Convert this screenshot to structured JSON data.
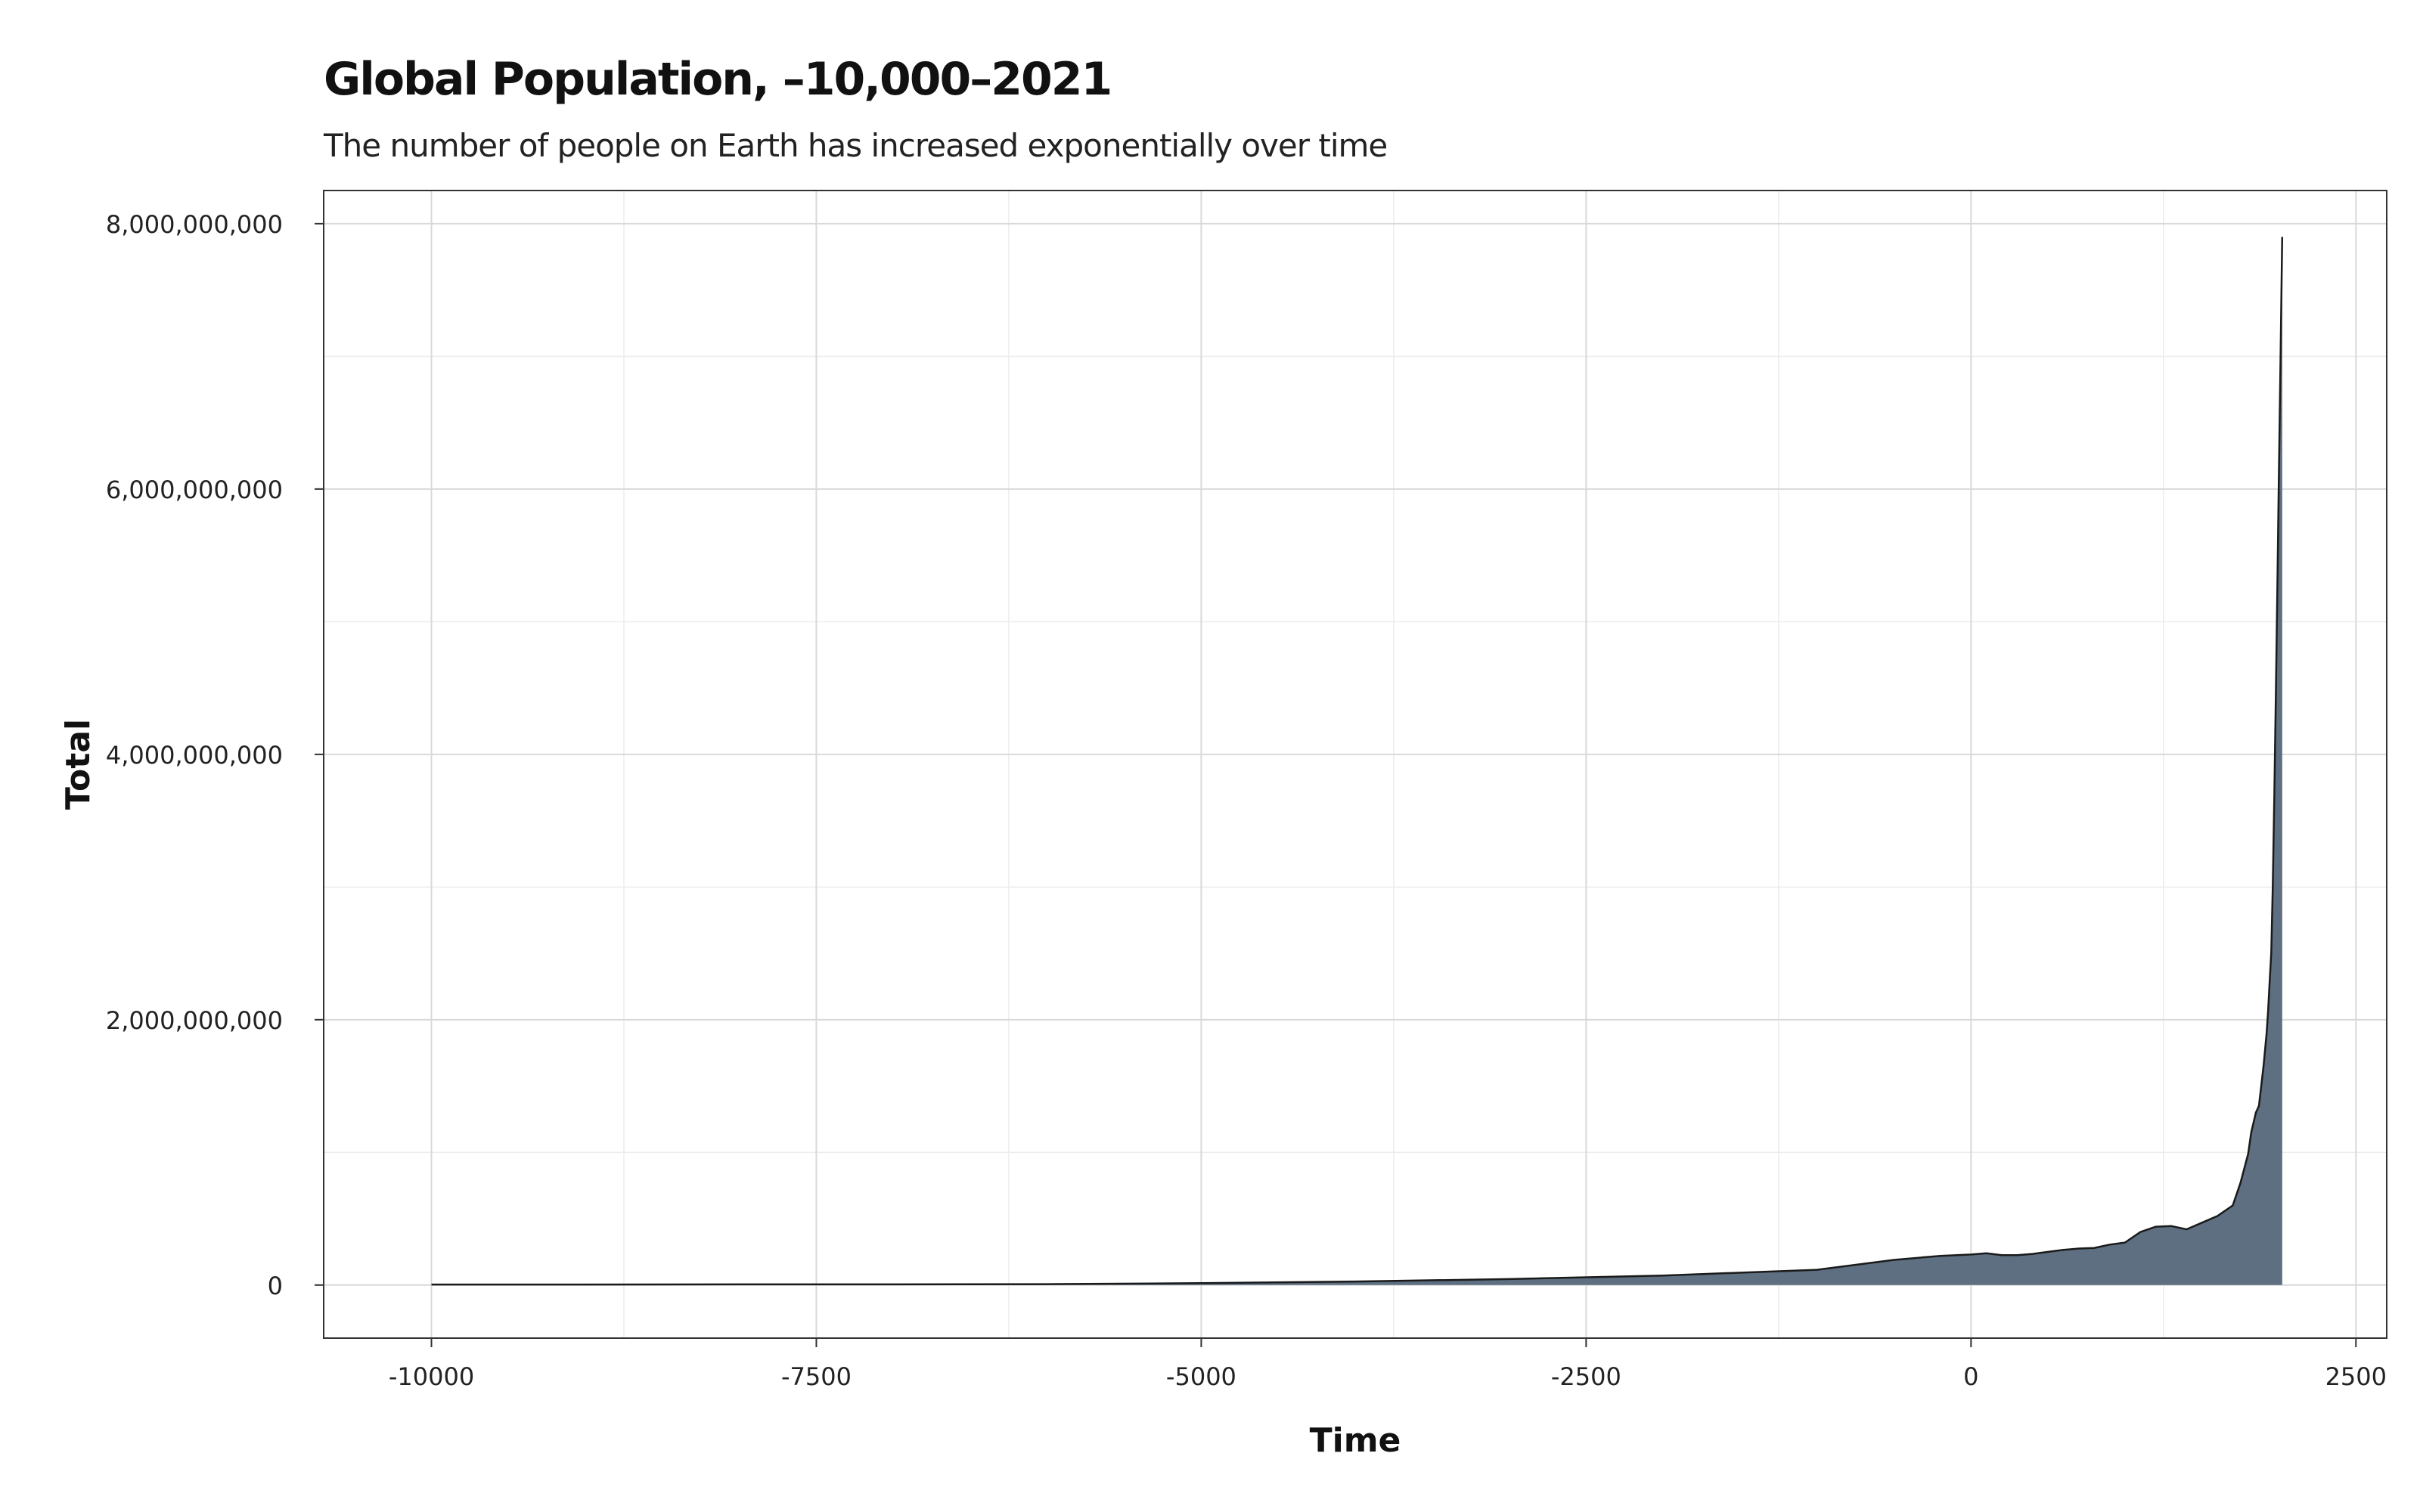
{
  "chart_data": {
    "type": "area",
    "title": "Global Population, –10,000–2021",
    "subtitle": "The number of people on Earth has increased exponentially over time",
    "xlabel": "Time",
    "ylabel": "Total",
    "xlim": [
      -10700,
      2700
    ],
    "ylim": [
      -400000000,
      8250000000
    ],
    "x_ticks": [
      -10000,
      -7500,
      -5000,
      -2500,
      0,
      2500
    ],
    "x_tick_labels": [
      "-10000",
      "-7500",
      "-5000",
      "-2500",
      "0",
      "2500"
    ],
    "y_ticks": [
      0,
      2000000000,
      4000000000,
      6000000000,
      8000000000
    ],
    "y_tick_labels": [
      "0",
      "2,000,000,000",
      "4,000,000,000",
      "6,000,000,000",
      "8,000,000,000"
    ],
    "grid": true,
    "colors": {
      "fill": "#5d6f80",
      "line": "#1a1a1a",
      "grid": "#d9d9d9",
      "grid_minor": "#ececec",
      "border": "#333333"
    },
    "series": [
      {
        "x": [
          -10000,
          -9000,
          -8000,
          -7000,
          -6000,
          -5000,
          -4000,
          -3000,
          -2000,
          -1000,
          -500,
          -200,
          1,
          100,
          200,
          300,
          400,
          500,
          600,
          700,
          800,
          900,
          1000,
          1100,
          1200,
          1300,
          1400,
          1500,
          1600,
          1700,
          1750,
          1800,
          1820,
          1850,
          1870,
          1900,
          1920,
          1930,
          1940,
          1950,
          1960,
          1970,
          1980,
          1990,
          2000,
          2010,
          2021
        ],
        "values": [
          4000000,
          4000000,
          5000000,
          5000000,
          7000000,
          14000000,
          27000000,
          45000000,
          72000000,
          115000000,
          190000000,
          220000000,
          230000000,
          240000000,
          225000000,
          225000000,
          235000000,
          250000000,
          265000000,
          275000000,
          280000000,
          305000000,
          320000000,
          400000000,
          440000000,
          445000000,
          420000000,
          470000000,
          520000000,
          600000000,
          770000000,
          990000000,
          1150000000,
          1300000000,
          1350000000,
          1650000000,
          1900000000,
          2070000000,
          2300000000,
          2500000000,
          3000000000,
          3700000000,
          4450000000,
          5300000000,
          6150000000,
          6950000000,
          7900000000
        ]
      }
    ]
  }
}
